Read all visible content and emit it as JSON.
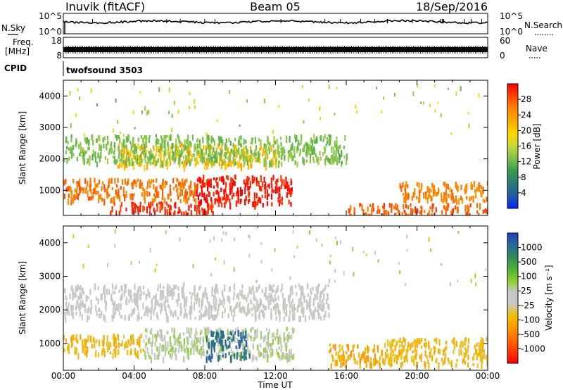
{
  "header": {
    "station": "Inuvik (fitACF)",
    "beam": "Beam 05",
    "date": "18/Sep/2016"
  },
  "noise_panel": {
    "left_label": "N.Sky",
    "right_label": "N.Search",
    "left_ticks": [
      "10^5",
      "10^0"
    ],
    "right_ticks": [
      "10^5",
      "10^0"
    ]
  },
  "freq_panel": {
    "left_label_1": "Freq.",
    "left_label_2": "[MHz]",
    "left_ticks": [
      "18",
      "8"
    ],
    "right_label": "Nave",
    "right_ticks": [
      "60",
      "0"
    ]
  },
  "cpid_panel": {
    "label": "CPID",
    "program": "twofsound 3503"
  },
  "power_panel": {
    "ylabel": "Slant Range [km]",
    "colorbar_label": "Power [dB]",
    "colorbar_ticks": [
      "28",
      "24",
      "20",
      "16",
      "12",
      "8",
      "4"
    ],
    "colorbar_colors": [
      "#ff0000",
      "#ff4400",
      "#ff8800",
      "#ffaa00",
      "#ffd700",
      "#c8d838",
      "#7cc24a",
      "#3a9a4e",
      "#2a7a74",
      "#1f5aa8",
      "#0a20ff"
    ]
  },
  "velocity_panel": {
    "ylabel": "Slant Range [km]",
    "colorbar_label": "Velocity [m s⁻¹]",
    "colorbar_ticks": [
      "1000",
      "500",
      "100",
      "25",
      "-25",
      "-100",
      "-500",
      "-1000"
    ],
    "colorbar_colors": [
      "#1f3fbf",
      "#2a6a9a",
      "#2f8a5a",
      "#4caf3c",
      "#8bd02a",
      "#c8c8c8",
      "#c8c8c8",
      "#f0c000",
      "#ff9900",
      "#ff6a00",
      "#ff3a00",
      "#ff0000"
    ]
  },
  "x_axis": {
    "label": "Time UT",
    "ticks": [
      "00:00",
      "04:00",
      "08:00",
      "12:00",
      "16:00",
      "20:00",
      "00:00"
    ]
  },
  "chart_data": {
    "type": "heatmap",
    "title": "Inuvik (fitACF)  Beam 05  18/Sep/2016",
    "xlabel": "Time UT",
    "ylabel": "Slant Range [km]",
    "xlim": [
      "00:00",
      "24:00"
    ],
    "ylim": [
      200,
      4500
    ],
    "y_ticks": [
      1000,
      2000,
      3000,
      4000
    ],
    "panels": [
      {
        "name": "Power",
        "units": "dB",
        "scale": [
          0,
          30
        ],
        "regions": [
          {
            "t_start": 0.0,
            "t_end": 7.5,
            "range_km": [
              700,
              1400
            ],
            "value": 25
          },
          {
            "t_start": 2.5,
            "t_end": 8.5,
            "range_km": [
              300,
              650
            ],
            "value": 28
          },
          {
            "t_start": 7.5,
            "t_end": 13.0,
            "range_km": [
              600,
              1500
            ],
            "value": 29
          },
          {
            "t_start": 3.0,
            "t_end": 12.0,
            "range_km": [
              1800,
              2500
            ],
            "value": 20
          },
          {
            "t_start": 0.0,
            "t_end": 16.0,
            "range_km": [
              1900,
              2800
            ],
            "value": 12
          },
          {
            "t_start": 16.0,
            "t_end": 24.0,
            "range_km": [
              250,
              600
            ],
            "value": 26
          },
          {
            "t_start": 19.0,
            "t_end": 24.0,
            "range_km": [
              700,
              1300
            ],
            "value": 24
          }
        ]
      },
      {
        "name": "Velocity",
        "units": "m s^-1",
        "scale": [
          -1000,
          1000
        ],
        "regions": [
          {
            "t_start": 0.0,
            "t_end": 4.5,
            "range_km": [
              700,
              1300
            ],
            "value": -300
          },
          {
            "t_start": 0.0,
            "t_end": 15.0,
            "range_km": [
              1800,
              2800
            ],
            "value": 0
          },
          {
            "t_start": 4.5,
            "t_end": 13.0,
            "range_km": [
              600,
              1500
            ],
            "value": 150
          },
          {
            "t_start": 8.0,
            "t_end": 10.5,
            "range_km": [
              600,
              1400
            ],
            "value": 800
          },
          {
            "t_start": 15.0,
            "t_end": 18.0,
            "range_km": [
              400,
              1000
            ],
            "value": -400
          },
          {
            "t_start": 18.0,
            "t_end": 24.0,
            "range_km": [
              400,
              1200
            ],
            "value": -300
          }
        ]
      }
    ]
  }
}
